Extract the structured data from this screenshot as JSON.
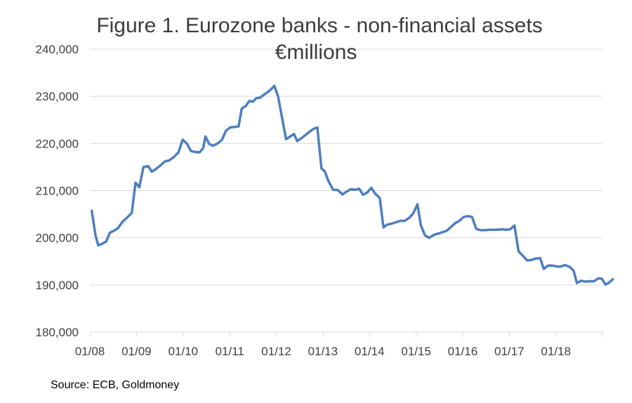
{
  "chart_data": {
    "type": "line",
    "title": "Figure 1. Eurozone banks - non-financial assets",
    "subtitle": "€millions",
    "xlabel": "",
    "ylabel": "",
    "ylim": [
      180000,
      240000
    ],
    "yticks": [
      180000,
      190000,
      200000,
      210000,
      220000,
      230000,
      240000
    ],
    "ytick_labels": [
      "180,000",
      "190,000",
      "200,000",
      "210,000",
      "220,000",
      "230,000",
      "240,000"
    ],
    "xticks": [
      2008,
      2009,
      2010,
      2011,
      2012,
      2013,
      2014,
      2015,
      2016,
      2017,
      2018
    ],
    "xtick_labels": [
      "01/08",
      "01/09",
      "01/10",
      "01/11",
      "01/12",
      "01/13",
      "01/14",
      "01/15",
      "01/16",
      "01/17",
      "01/18"
    ],
    "xlim": [
      2008,
      2019
    ],
    "grid": true,
    "legend": "none",
    "color": "#4f7ec0",
    "series": [
      {
        "points": [
          [
            2008.04,
            205700
          ],
          [
            2008.12,
            200500
          ],
          [
            2008.18,
            198400
          ],
          [
            2008.26,
            198700
          ],
          [
            2008.35,
            199200
          ],
          [
            2008.43,
            201100
          ],
          [
            2008.52,
            201500
          ],
          [
            2008.6,
            202000
          ],
          [
            2008.7,
            203400
          ],
          [
            2008.8,
            204300
          ],
          [
            2008.9,
            205300
          ],
          [
            2008.98,
            211700
          ],
          [
            2009.06,
            210700
          ],
          [
            2009.15,
            215000
          ],
          [
            2009.25,
            215200
          ],
          [
            2009.33,
            214000
          ],
          [
            2009.42,
            214600
          ],
          [
            2009.52,
            215400
          ],
          [
            2009.61,
            216200
          ],
          [
            2009.7,
            216400
          ],
          [
            2009.8,
            217100
          ],
          [
            2009.9,
            218100
          ],
          [
            2009.99,
            220800
          ],
          [
            2010.08,
            220000
          ],
          [
            2010.17,
            218400
          ],
          [
            2010.26,
            218200
          ],
          [
            2010.35,
            218100
          ],
          [
            2010.43,
            219000
          ],
          [
            2010.48,
            221500
          ],
          [
            2010.56,
            219900
          ],
          [
            2010.64,
            219500
          ],
          [
            2010.74,
            220000
          ],
          [
            2010.83,
            220700
          ],
          [
            2010.92,
            222700
          ],
          [
            2011.01,
            223400
          ],
          [
            2011.1,
            223500
          ],
          [
            2011.19,
            223600
          ],
          [
            2011.26,
            227400
          ],
          [
            2011.34,
            227900
          ],
          [
            2011.42,
            229000
          ],
          [
            2011.5,
            228900
          ],
          [
            2011.57,
            229600
          ],
          [
            2011.65,
            229700
          ],
          [
            2011.73,
            230300
          ],
          [
            2011.82,
            230900
          ],
          [
            2011.9,
            231600
          ],
          [
            2011.96,
            232200
          ],
          [
            2012.04,
            229900
          ],
          [
            2012.13,
            225100
          ],
          [
            2012.21,
            220900
          ],
          [
            2012.3,
            221500
          ],
          [
            2012.38,
            222000
          ],
          [
            2012.45,
            220500
          ],
          [
            2012.55,
            221200
          ],
          [
            2012.64,
            221900
          ],
          [
            2012.74,
            222700
          ],
          [
            2012.82,
            223200
          ],
          [
            2012.88,
            223400
          ],
          [
            2012.97,
            214700
          ],
          [
            2013.04,
            214100
          ],
          [
            2013.12,
            212000
          ],
          [
            2013.22,
            210200
          ],
          [
            2013.32,
            210100
          ],
          [
            2013.42,
            209200
          ],
          [
            2013.51,
            209800
          ],
          [
            2013.6,
            210300
          ],
          [
            2013.7,
            210200
          ],
          [
            2013.78,
            210400
          ],
          [
            2013.86,
            209100
          ],
          [
            2013.95,
            209600
          ],
          [
            2014.04,
            210600
          ],
          [
            2014.12,
            209400
          ],
          [
            2014.22,
            208400
          ],
          [
            2014.3,
            202200
          ],
          [
            2014.38,
            202800
          ],
          [
            2014.48,
            203000
          ],
          [
            2014.57,
            203300
          ],
          [
            2014.67,
            203600
          ],
          [
            2014.76,
            203600
          ],
          [
            2014.86,
            204300
          ],
          [
            2014.94,
            205200
          ],
          [
            2015.03,
            207100
          ],
          [
            2015.1,
            202700
          ],
          [
            2015.19,
            200500
          ],
          [
            2015.28,
            200000
          ],
          [
            2015.38,
            200600
          ],
          [
            2015.48,
            200900
          ],
          [
            2015.57,
            201200
          ],
          [
            2015.66,
            201500
          ],
          [
            2015.75,
            202300
          ],
          [
            2015.84,
            203100
          ],
          [
            2015.93,
            203600
          ],
          [
            2016.02,
            204400
          ],
          [
            2016.11,
            204600
          ],
          [
            2016.2,
            204400
          ],
          [
            2016.29,
            201900
          ],
          [
            2016.38,
            201600
          ],
          [
            2016.48,
            201600
          ],
          [
            2016.57,
            201700
          ],
          [
            2016.66,
            201700
          ],
          [
            2016.75,
            201700
          ],
          [
            2016.84,
            201800
          ],
          [
            2016.93,
            201700
          ],
          [
            2017.02,
            201800
          ],
          [
            2017.11,
            202600
          ],
          [
            2017.2,
            197100
          ],
          [
            2017.29,
            196200
          ],
          [
            2017.38,
            195200
          ],
          [
            2017.48,
            195300
          ],
          [
            2017.57,
            195600
          ],
          [
            2017.66,
            195700
          ],
          [
            2017.74,
            193400
          ],
          [
            2017.83,
            194100
          ],
          [
            2017.93,
            194100
          ],
          [
            2018.02,
            193900
          ],
          [
            2018.1,
            193900
          ],
          [
            2018.2,
            194200
          ],
          [
            2018.3,
            193800
          ],
          [
            2018.38,
            193000
          ],
          [
            2018.45,
            190400
          ],
          [
            2018.54,
            190900
          ],
          [
            2018.63,
            190700
          ],
          [
            2018.73,
            190800
          ],
          [
            2018.82,
            190800
          ],
          [
            2018.91,
            191400
          ],
          [
            2018.99,
            191300
          ],
          [
            2019.06,
            190100
          ],
          [
            2019.13,
            190400
          ],
          [
            2019.22,
            191200
          ]
        ]
      }
    ]
  },
  "footer": {
    "source": "Source: ECB, Goldmoney"
  }
}
